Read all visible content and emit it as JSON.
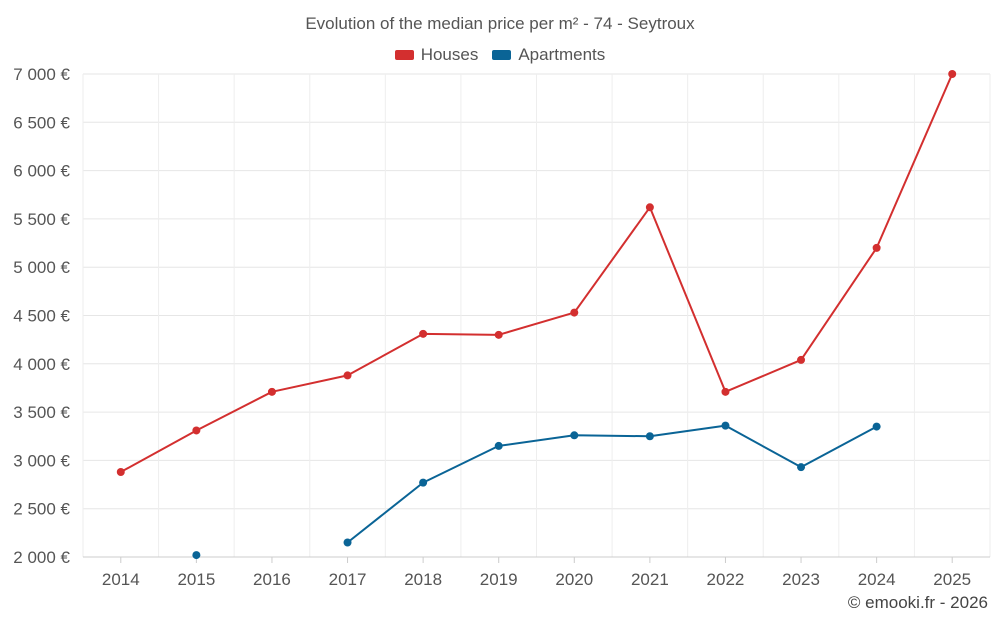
{
  "chart_data": {
    "type": "line",
    "title": "Evolution of the median price per m² - 74 - Seytroux",
    "categories": [
      "2014",
      "2015",
      "2016",
      "2017",
      "2018",
      "2019",
      "2020",
      "2021",
      "2022",
      "2023",
      "2024",
      "2025"
    ],
    "yticks": [
      "2 000 €",
      "2 500 €",
      "3 000 €",
      "3 500 €",
      "4 000 €",
      "4 500 €",
      "5 000 €",
      "5 500 €",
      "6 000 €",
      "6 500 €",
      "7 000 €"
    ],
    "ylim": [
      2000,
      7000
    ],
    "grid": true,
    "legend_position": "top-center",
    "series": [
      {
        "name": "Houses",
        "color": "#d32f2f",
        "values": [
          2880,
          3310,
          3710,
          3880,
          4310,
          4300,
          4530,
          5620,
          3710,
          4040,
          5200,
          7000
        ]
      },
      {
        "name": "Apartments",
        "color": "#0a6496",
        "values": [
          null,
          2020,
          null,
          2150,
          2770,
          3150,
          3260,
          3250,
          3360,
          2930,
          3350,
          null
        ]
      }
    ]
  },
  "credit": "© emooki.fr - 2026"
}
